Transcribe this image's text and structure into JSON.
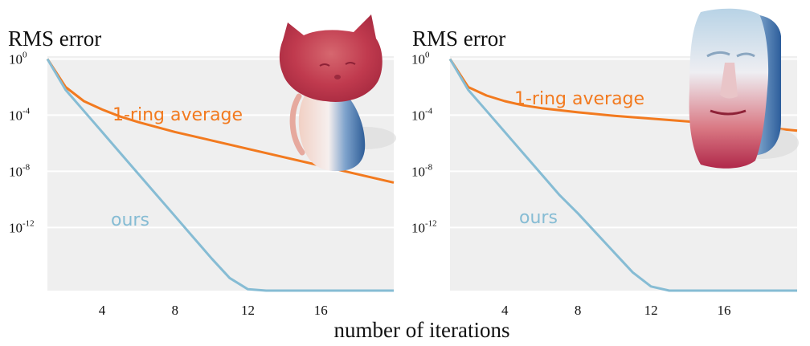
{
  "xlabel": "number of iterations",
  "colors": {
    "ring": "#f27a1f",
    "ours": "#86bcd4",
    "panel_bg": "#efefef",
    "grid": "#ffffff"
  },
  "chart_data": [
    {
      "type": "line",
      "title": "RMS error",
      "ylabel": "RMS error",
      "xlabel": "number of iterations",
      "xlim": [
        1,
        20
      ],
      "ylim_log10": [
        -16.5,
        0.2
      ],
      "xticks": [
        4,
        8,
        12,
        16
      ],
      "yticks": [
        {
          "base": "10",
          "exp": "0",
          "value": 0
        },
        {
          "base": "10",
          "exp": "-4",
          "value": -4
        },
        {
          "base": "10",
          "exp": "-8",
          "value": -8
        },
        {
          "base": "10",
          "exp": "-12",
          "value": -12
        }
      ],
      "series": [
        {
          "name": "1-ring average",
          "color": "#f27a1f",
          "x": [
            1,
            2,
            3,
            4,
            5,
            6,
            8,
            10,
            12,
            14,
            16,
            18,
            20
          ],
          "log10_y": [
            0,
            -2.0,
            -3.0,
            -3.6,
            -4.1,
            -4.5,
            -5.2,
            -5.8,
            -6.4,
            -7.0,
            -7.6,
            -8.2,
            -8.8
          ]
        },
        {
          "name": "ours",
          "color": "#86bcd4",
          "x": [
            1,
            2,
            3,
            4,
            5,
            6,
            7,
            8,
            9,
            10,
            11,
            12,
            13,
            20
          ],
          "log10_y": [
            0,
            -2.2,
            -3.7,
            -5.2,
            -6.7,
            -8.2,
            -9.7,
            -11.2,
            -12.7,
            -14.2,
            -15.6,
            -16.4,
            -16.5,
            -16.5
          ]
        }
      ],
      "annotations": [
        "1-ring average",
        "ours"
      ],
      "inset": "cat-shaped 3D model colored red-white-blue"
    },
    {
      "type": "line",
      "title": "RMS error",
      "ylabel": "RMS error",
      "xlabel": "number of iterations",
      "xlim": [
        1,
        20
      ],
      "ylim_log10": [
        -16.5,
        0.2
      ],
      "xticks": [
        4,
        8,
        12,
        16
      ],
      "yticks": [
        {
          "base": "10",
          "exp": "0",
          "value": 0
        },
        {
          "base": "10",
          "exp": "-4",
          "value": -4
        },
        {
          "base": "10",
          "exp": "-8",
          "value": -8
        },
        {
          "base": "10",
          "exp": "-12",
          "value": -12
        }
      ],
      "series": [
        {
          "name": "1-ring average",
          "color": "#f27a1f",
          "x": [
            1,
            2,
            3,
            4,
            5,
            6,
            8,
            10,
            12,
            14,
            16,
            18,
            20
          ],
          "log10_y": [
            0,
            -2.0,
            -2.6,
            -3.0,
            -3.3,
            -3.5,
            -3.8,
            -4.05,
            -4.25,
            -4.45,
            -4.65,
            -4.85,
            -5.1
          ]
        },
        {
          "name": "ours",
          "color": "#86bcd4",
          "x": [
            1,
            2,
            3,
            4,
            5,
            6,
            7,
            8,
            9,
            10,
            11,
            12,
            13,
            20
          ],
          "log10_y": [
            0,
            -2.2,
            -3.7,
            -5.2,
            -6.7,
            -8.2,
            -9.7,
            -11.0,
            -12.4,
            -13.8,
            -15.2,
            -16.2,
            -16.5,
            -16.5
          ]
        }
      ],
      "annotations": [
        "1-ring average",
        "ours"
      ],
      "inset": "Moai head 3D model colored red-white-blue"
    }
  ]
}
